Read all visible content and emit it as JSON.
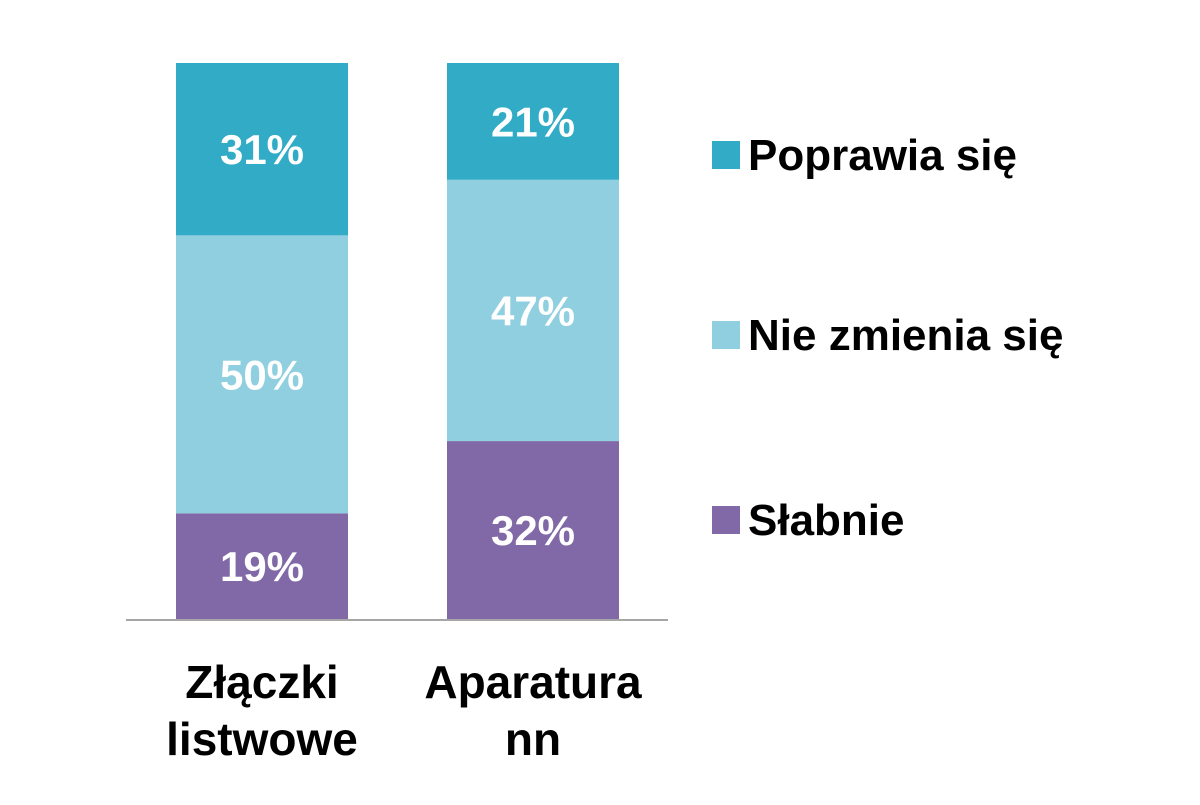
{
  "chart_data": {
    "type": "bar",
    "stacked": true,
    "percent": true,
    "categories": [
      "Złączki listwowe",
      "Aparatura nn"
    ],
    "category_label_lines": [
      [
        "Złączki",
        "listwowe"
      ],
      [
        "Aparatura",
        "nn"
      ]
    ],
    "series": [
      {
        "name": "Słabnie",
        "values": [
          19,
          32
        ],
        "color": "#8069a6"
      },
      {
        "name": "Nie zmienia się",
        "values": [
          50,
          47
        ],
        "color": "#90cfdf"
      },
      {
        "name": "Poprawia się",
        "values": [
          31,
          21
        ],
        "color": "#31abc6"
      }
    ],
    "data_labels": [
      [
        "19%",
        "32%"
      ],
      [
        "50%",
        "47%"
      ],
      [
        "31%",
        "21%"
      ]
    ],
    "legend": {
      "position": "right",
      "entries": [
        "Poprawia się",
        "Nie zmienia się",
        "Słabnie"
      ]
    },
    "ylim": [
      0,
      100
    ],
    "grid": false,
    "axis_color": "#a6a6a6",
    "label_color": "#ffffff",
    "text_color": "#000000"
  }
}
